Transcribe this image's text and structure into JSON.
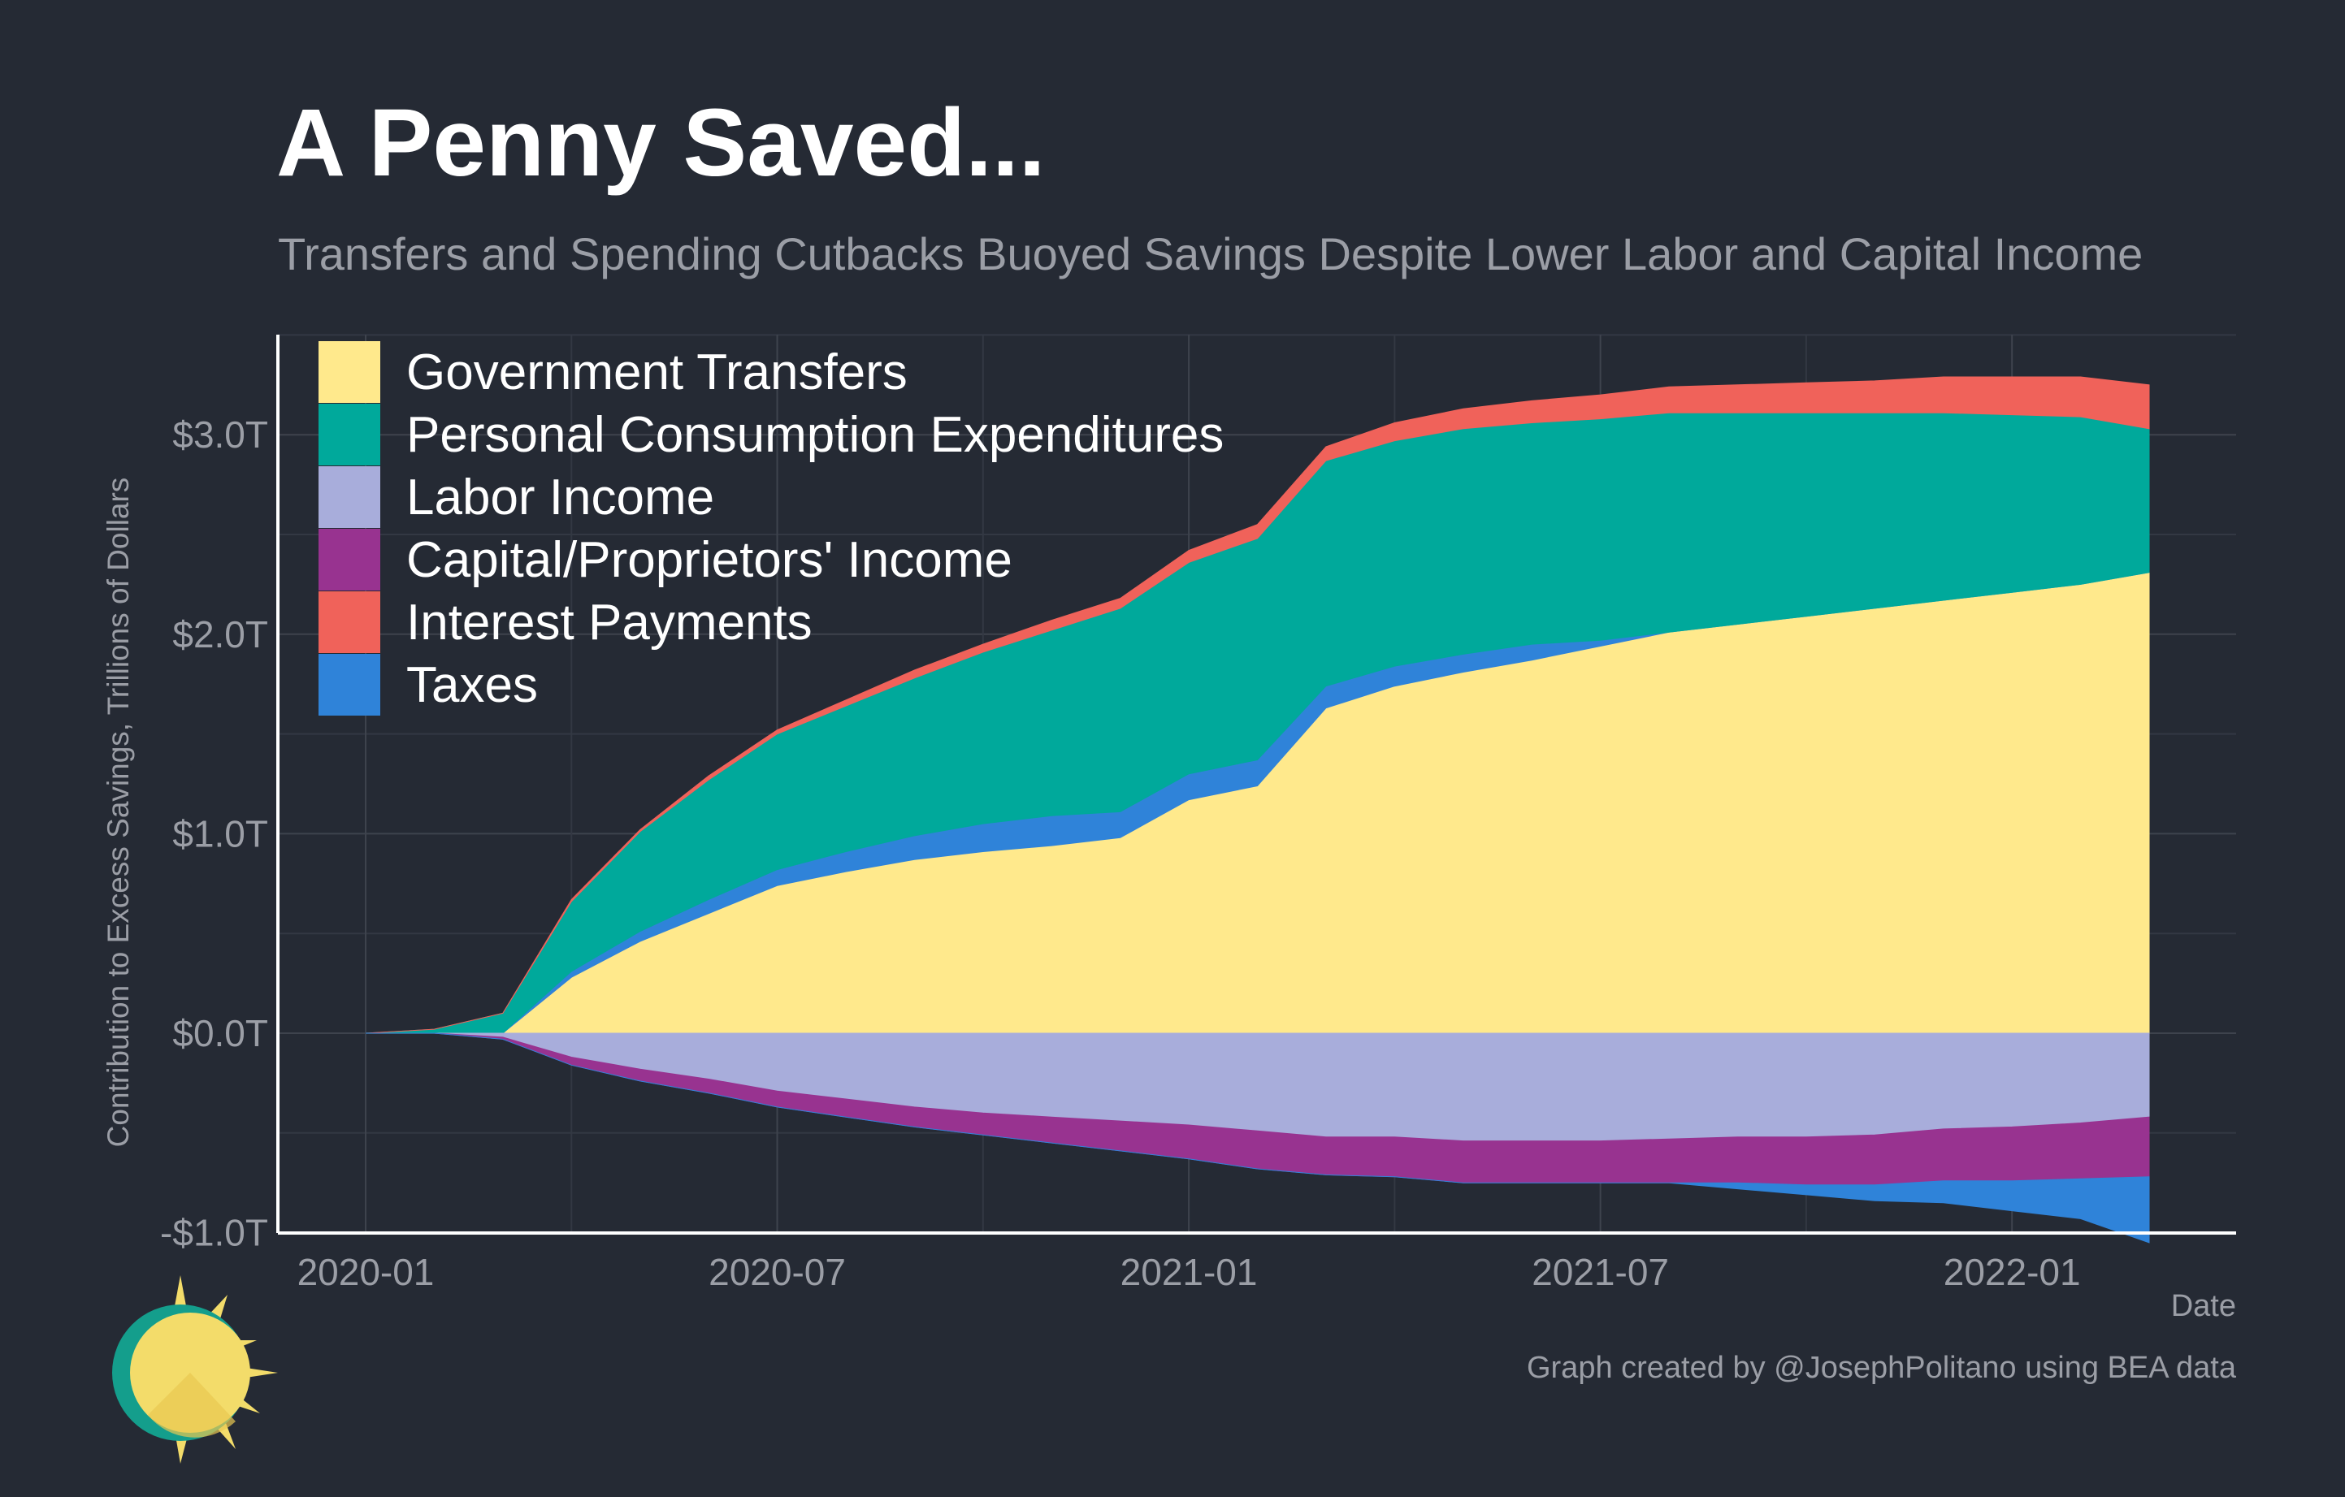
{
  "header": {
    "title": "A Penny Saved...",
    "subtitle": "Transfers and Spending Cutbacks Buoyed Savings Despite Lower Labor and Capital Income"
  },
  "footer": {
    "credit": "Graph created by @JosephPolitano using BEA data"
  },
  "logo": {
    "icon": "sun-logo-icon"
  },
  "chart_data": {
    "type": "area",
    "stacked": true,
    "title": "A Penny Saved...",
    "subtitle": "Transfers and Spending Cutbacks Buoyed Savings Despite Lower Labor and Capital Income",
    "xlabel": "Date",
    "ylabel": "Contribution to Excess Savings, Trillions of Dollars",
    "ylim": [
      -1.0,
      3.5
    ],
    "yticks": [
      -1.0,
      0.0,
      1.0,
      2.0,
      3.0
    ],
    "ytick_labels": [
      "-$1.0T",
      "$0.0T",
      "$1.0T",
      "$2.0T",
      "$3.0T"
    ],
    "xticks": [
      "2020-01",
      "2020-07",
      "2021-01",
      "2021-07",
      "2022-01"
    ],
    "grid": true,
    "legend_position": "top-left",
    "x": [
      "2020-01",
      "2020-02",
      "2020-03",
      "2020-04",
      "2020-05",
      "2020-06",
      "2020-07",
      "2020-08",
      "2020-09",
      "2020-10",
      "2020-11",
      "2020-12",
      "2021-01",
      "2021-02",
      "2021-03",
      "2021-04",
      "2021-05",
      "2021-06",
      "2021-07",
      "2021-08",
      "2021-09",
      "2021-10",
      "2021-11",
      "2021-12",
      "2022-01",
      "2022-02",
      "2022-03"
    ],
    "series": [
      {
        "name": "Government Transfers",
        "color": "#ffe98c",
        "sign": "positive",
        "values": [
          0,
          0,
          0,
          0.28,
          0.46,
          0.6,
          0.74,
          0.81,
          0.87,
          0.91,
          0.94,
          0.98,
          1.17,
          1.24,
          1.63,
          1.74,
          1.81,
          1.87,
          1.94,
          2.01,
          2.05,
          2.09,
          2.13,
          2.17,
          2.21,
          2.25,
          2.31
        ]
      },
      {
        "name": "Taxes",
        "color": "#2f83d9",
        "sign": "positive",
        "values": [
          0,
          0,
          0,
          0.03,
          0.05,
          0.07,
          0.08,
          0.1,
          0.12,
          0.14,
          0.15,
          0.13,
          0.13,
          0.13,
          0.11,
          0.1,
          0.09,
          0.08,
          0.03,
          0,
          0,
          0,
          0,
          0,
          0,
          0,
          0
        ]
      },
      {
        "name": "Personal Consumption Expenditures",
        "color": "#00a99b",
        "sign": "positive",
        "values": [
          0,
          0.02,
          0.1,
          0.35,
          0.5,
          0.6,
          0.68,
          0.73,
          0.79,
          0.86,
          0.93,
          1.02,
          1.06,
          1.11,
          1.13,
          1.13,
          1.13,
          1.11,
          1.11,
          1.1,
          1.06,
          1.02,
          0.98,
          0.94,
          0.89,
          0.84,
          0.72
        ]
      },
      {
        "name": "Interest Payments",
        "color": "#f0625a",
        "sign": "positive",
        "values": [
          0,
          0,
          0,
          0.01,
          0.01,
          0.02,
          0.02,
          0.03,
          0.04,
          0.04,
          0.05,
          0.05,
          0.06,
          0.07,
          0.07,
          0.09,
          0.1,
          0.11,
          0.12,
          0.13,
          0.14,
          0.15,
          0.16,
          0.18,
          0.19,
          0.2,
          0.22
        ]
      },
      {
        "name": "Labor Income",
        "color": "#a8addb",
        "sign": "negative",
        "values": [
          0,
          0,
          -0.02,
          -0.12,
          -0.18,
          -0.23,
          -0.29,
          -0.33,
          -0.37,
          -0.4,
          -0.42,
          -0.44,
          -0.46,
          -0.49,
          -0.52,
          -0.52,
          -0.54,
          -0.54,
          -0.54,
          -0.53,
          -0.52,
          -0.52,
          -0.51,
          -0.48,
          -0.47,
          -0.45,
          -0.42
        ]
      },
      {
        "name": "Capital/Proprietors' Income",
        "color": "#983390",
        "sign": "negative",
        "values": [
          0,
          0,
          -0.01,
          -0.04,
          -0.06,
          -0.07,
          -0.08,
          -0.09,
          -0.1,
          -0.11,
          -0.13,
          -0.15,
          -0.17,
          -0.19,
          -0.19,
          -0.2,
          -0.21,
          -0.21,
          -0.21,
          -0.22,
          -0.23,
          -0.24,
          -0.25,
          -0.26,
          -0.27,
          -0.28,
          -0.3
        ]
      },
      {
        "name": "Taxes",
        "color": "#2f83d9",
        "sign": "negative",
        "legend": false,
        "values": [
          0,
          0,
          0,
          0,
          0,
          0,
          0,
          0,
          0,
          0,
          0,
          0,
          0,
          0,
          0,
          0,
          0,
          0,
          0,
          0,
          -0.03,
          -0.05,
          -0.08,
          -0.11,
          -0.15,
          -0.2,
          -0.33
        ]
      }
    ],
    "legend": [
      {
        "name": "Government Transfers",
        "color": "#ffe98c"
      },
      {
        "name": "Personal Consumption Expenditures",
        "color": "#00a99b"
      },
      {
        "name": "Labor Income",
        "color": "#a8addb"
      },
      {
        "name": "Capital/Proprietors' Income",
        "color": "#983390"
      },
      {
        "name": "Interest Payments",
        "color": "#f0625a"
      },
      {
        "name": "Taxes",
        "color": "#2f83d9"
      }
    ]
  }
}
